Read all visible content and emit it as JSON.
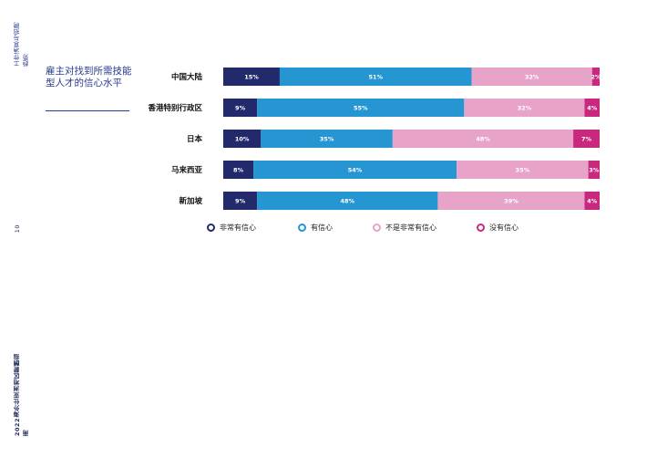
{
  "side_text": {
    "top": "工作满意与招聘趋势",
    "page_number": "10",
    "bottom": "2022海外仕亚洲地区薪酬指南"
  },
  "title": "雇主对找到所需技能型人才的信心水平",
  "colors": {
    "very_confident": "#232a6b",
    "confident": "#2596d1",
    "not_very_confident": "#e8a3c8",
    "not_confident": "#c8297f",
    "title": "#2a3b8f"
  },
  "legend": [
    {
      "label": "非常有信心",
      "color": "#232a6b"
    },
    {
      "label": "有信心",
      "color": "#2596d1"
    },
    {
      "label": "不是非常有信心",
      "color": "#e8a3c8"
    },
    {
      "label": "没有信心",
      "color": "#c8297f"
    }
  ],
  "chart_data": {
    "type": "bar",
    "orientation": "horizontal",
    "stacked": true,
    "title": "雇主对找到所需技能型人才的信心水平",
    "categories": [
      "中国大陆",
      "香港特别行政区",
      "日本",
      "马来西亚",
      "新加坡"
    ],
    "series": [
      {
        "name": "非常有信心",
        "values": [
          15,
          9,
          10,
          8,
          9
        ],
        "labels": [
          "15%",
          "9%",
          "10%",
          "8%",
          "9%"
        ],
        "color": "#232a6b"
      },
      {
        "name": "有信心",
        "values": [
          51,
          55,
          35,
          54,
          48
        ],
        "labels": [
          "51%",
          "55%",
          "35%",
          "54%",
          "48%"
        ],
        "color": "#2596d1"
      },
      {
        "name": "不是非常有信心",
        "values": [
          32,
          32,
          48,
          35,
          39
        ],
        "labels": [
          "32%",
          "32%",
          "48%",
          "35%",
          "39%"
        ],
        "color": "#e8a3c8"
      },
      {
        "name": "没有信心",
        "values": [
          2,
          4,
          7,
          3,
          4
        ],
        "labels": [
          "2%",
          "4%",
          "7%",
          "3%",
          "4%"
        ],
        "color": "#c8297f"
      }
    ],
    "grid": false,
    "legend_position": "bottom"
  }
}
